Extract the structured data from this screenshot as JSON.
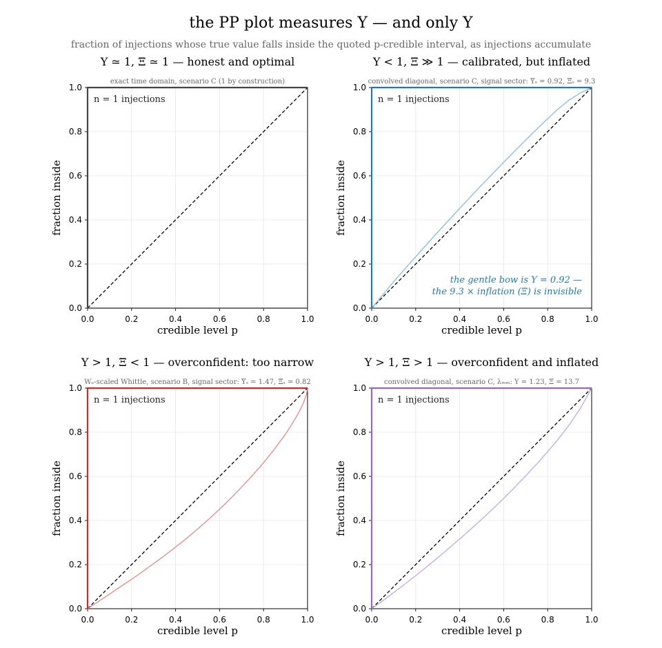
{
  "figure": {
    "title": "the PP plot measures Υ — and only Υ",
    "subtitle": "fraction of injections whose true value falls inside the quoted p-credible interval, as injections accumulate"
  },
  "chart_data": [
    {
      "type": "line",
      "title": "Υ ≃ 1,   Ξ ≃ 1 — honest and optimal",
      "subtitle": "exact time domain, scenario C  (1 by construction)",
      "xlabel": "credible level p",
      "ylabel": "fraction inside",
      "xlim": [
        0,
        1
      ],
      "ylim": [
        0,
        1
      ],
      "xticks": [
        "0.0",
        "0.2",
        "0.4",
        "0.6",
        "0.8",
        "1.0"
      ],
      "yticks": [
        "0.0",
        "0.2",
        "0.4",
        "0.6",
        "0.8",
        "1.0"
      ],
      "grid": true,
      "counter": "n = 1 injections",
      "accent": "#444444",
      "curve_color": "#444444",
      "diagonal": true,
      "series": [
        {
          "x": [
            0,
            1,
            1
          ],
          "y": [
            0,
            0,
            1
          ]
        }
      ]
    },
    {
      "type": "line",
      "title": "Υ < 1,   Ξ ≫ 1 — calibrated, but inflated",
      "subtitle": "convolved diagonal, scenario C, signal sector:  Υ̃ₛ = 0.92, Ξ̃ₛ = 9.3",
      "xlabel": "credible level p",
      "ylabel": "fraction inside",
      "xlim": [
        0,
        1
      ],
      "ylim": [
        0,
        1
      ],
      "xticks": [
        "0.0",
        "0.2",
        "0.4",
        "0.6",
        "0.8",
        "1.0"
      ],
      "yticks": [
        "0.0",
        "0.2",
        "0.4",
        "0.6",
        "0.8",
        "1.0"
      ],
      "grid": true,
      "counter": "n = 1 injections",
      "accent": "#1f77b4",
      "curve_color": "#8dc0e0",
      "diagonal": true,
      "annotation": [
        "the gentle bow is Υ = 0.92 —",
        "the 9.3 ×  inflation (Ξ) is invisible"
      ],
      "series": [
        {
          "x": [
            0,
            0.05,
            0.1,
            0.15,
            0.2,
            0.25,
            0.3,
            0.35,
            0.4,
            0.45,
            0.5,
            0.55,
            0.6,
            0.65,
            0.7,
            0.75,
            0.8,
            0.85,
            0.9,
            0.95,
            1.0
          ],
          "y": [
            0,
            0.06,
            0.12,
            0.177,
            0.233,
            0.289,
            0.344,
            0.398,
            0.452,
            0.505,
            0.558,
            0.61,
            0.661,
            0.712,
            0.762,
            0.811,
            0.859,
            0.905,
            0.945,
            0.976,
            1.0
          ]
        }
      ]
    },
    {
      "type": "line",
      "title": "Υ > 1,   Ξ < 1 — overconfident: too narrow",
      "subtitle": "Wₑ-scaled Whittle, scenario B, signal sector:  Υ̃ₛ = 1.47, Ξ̃ₛ = 0.82",
      "xlabel": "credible level p",
      "ylabel": "fraction inside",
      "xlim": [
        0,
        1
      ],
      "ylim": [
        0,
        1
      ],
      "xticks": [
        "0.0",
        "0.2",
        "0.4",
        "0.6",
        "0.8",
        "1.0"
      ],
      "yticks": [
        "0.0",
        "0.2",
        "0.4",
        "0.6",
        "0.8",
        "1.0"
      ],
      "grid": true,
      "counter": "n = 1 injections",
      "accent": "#d62728",
      "curve_color": "#e88e8e",
      "diagonal": true,
      "series": [
        {
          "x": [
            0,
            0.05,
            0.1,
            0.15,
            0.2,
            0.25,
            0.3,
            0.35,
            0.4,
            0.45,
            0.5,
            0.55,
            0.6,
            0.65,
            0.7,
            0.75,
            0.8,
            0.85,
            0.9,
            0.93,
            0.96,
            0.98,
            0.995,
            1.0
          ],
          "y": [
            0,
            0.033,
            0.066,
            0.1,
            0.133,
            0.168,
            0.204,
            0.241,
            0.279,
            0.319,
            0.361,
            0.405,
            0.451,
            0.5,
            0.551,
            0.605,
            0.662,
            0.724,
            0.792,
            0.838,
            0.889,
            0.93,
            0.97,
            1.0
          ]
        }
      ]
    },
    {
      "type": "line",
      "title": "Υ > 1,   Ξ > 1 — overconfident and inflated",
      "subtitle": "convolved diagonal, scenario C, λₘₘ:  Υ = 1.23, Ξ = 13.7",
      "xlabel": "credible level p",
      "ylabel": "fraction inside",
      "xlim": [
        0,
        1
      ],
      "ylim": [
        0,
        1
      ],
      "xticks": [
        "0.0",
        "0.2",
        "0.4",
        "0.6",
        "0.8",
        "1.0"
      ],
      "yticks": [
        "0.0",
        "0.2",
        "0.4",
        "0.6",
        "0.8",
        "1.0"
      ],
      "grid": true,
      "counter": "n = 1 injections",
      "accent": "#9467bd",
      "curve_color": "#c4aee0",
      "diagonal": true,
      "series": [
        {
          "x": [
            0,
            0.05,
            0.1,
            0.15,
            0.2,
            0.25,
            0.3,
            0.35,
            0.4,
            0.45,
            0.5,
            0.55,
            0.6,
            0.65,
            0.7,
            0.75,
            0.8,
            0.85,
            0.9,
            0.95,
            1.0
          ],
          "y": [
            0,
            0.036,
            0.073,
            0.111,
            0.15,
            0.19,
            0.231,
            0.273,
            0.316,
            0.36,
            0.405,
            0.452,
            0.5,
            0.55,
            0.602,
            0.656,
            0.712,
            0.771,
            0.836,
            0.91,
            1.0
          ]
        }
      ]
    }
  ]
}
